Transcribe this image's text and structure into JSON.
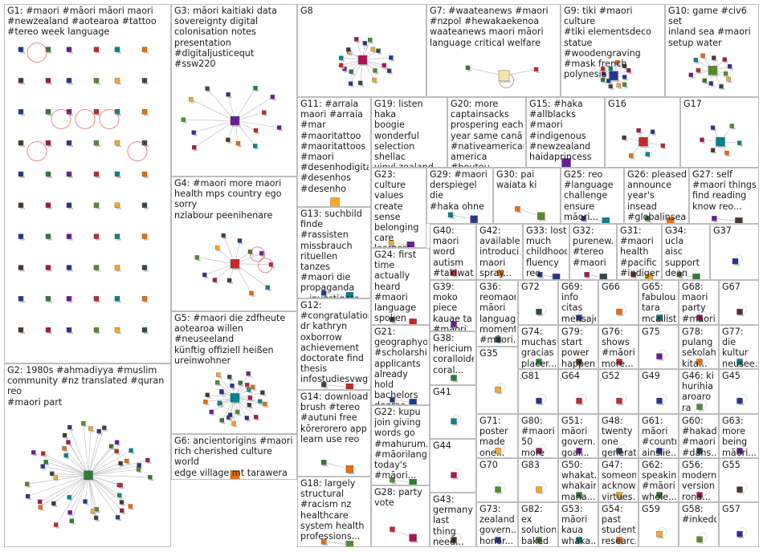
{
  "colors": {
    "border": "#bdbdbd",
    "edge": "#b9b9b9",
    "loop": "#e05a63",
    "text": "#1b1b1b"
  },
  "groups": [
    {
      "id": "G1",
      "text": "G1: #maori #māori māori maori\n#newzealand #aotearoa #tattoo\n#tereo week language",
      "shape": "grid",
      "nodes": 60,
      "loops": 6
    },
    {
      "id": "G2",
      "text": "G2: 1980s #ahmadiyya #muslim\ncommunity #nz translated #quran reo\n#maori part",
      "shape": "star",
      "nodes": 45,
      "loops": 0
    },
    {
      "id": "G3",
      "text": "G3: māori kaitiaki data\nsovereignty digital\ncolonisation notes\npresentation\n#digitaljusticequt #ssw220",
      "shape": "fan",
      "nodes": 14,
      "loops": 0
    },
    {
      "id": "G4",
      "text": "G4: #maori more maori\nhealth mps country ego sorry\nnzlabour peenihenare",
      "shape": "web",
      "nodes": 12,
      "loops": 2
    },
    {
      "id": "G5",
      "text": "G5: #maori die zdfheute\naotearoa willen #neuseeland\nkünftig offiziell heißen\nureinwohner",
      "shape": "star",
      "nodes": 28,
      "loops": 0
    },
    {
      "id": "G6",
      "text": "G6: ancientorigins #maori\nrich cherished culture world\nedge village mt tarawera",
      "shape": "star",
      "nodes": 24,
      "loops": 0
    },
    {
      "id": "G7",
      "text": "G7: #waateanews #maori\n#nzpol #hewakaekenoa\nwaateanews maori māori\nlanguage critical welfare",
      "shape": "hub",
      "nodes": 3,
      "loops": 1
    },
    {
      "id": "G8",
      "text": "G8",
      "shape": "star",
      "nodes": 18,
      "loops": 0
    },
    {
      "id": "G9",
      "text": "G9: tiki #maori culture\n#tiki elementsdeco\nstatue #woodengraving\n#mask french polynesia",
      "shape": "star",
      "nodes": 12,
      "loops": 0
    },
    {
      "id": "G10",
      "text": "G10: game #civ6 set\ninland sea #maori\nsetup water",
      "shape": "star",
      "nodes": 12,
      "loops": 0
    },
    {
      "id": "G11",
      "text": "G11: #arraia\nmaori #arraia\n#mar\n#maoritattoo\n#maoritattoos\n#maori\n#desenhodigital\n#desenhos\n#desenho",
      "shape": "star",
      "nodes": 8,
      "loops": 0
    },
    {
      "id": "G12",
      "text": "G12:\n#congratulations\ndr kathryn\noxborrow\nachievement\ndoctorate find\nthesis\ninfostudiesvwgtn...",
      "shape": "pair",
      "nodes": 2,
      "loops": 0
    },
    {
      "id": "G13",
      "text": "G13: suchbild\nfinde #rassisten\nmissbrauch\nrituellen tanzes\n#maori die\npropaganda\n__investigate__",
      "shape": "pair",
      "nodes": 2,
      "loops": 0
    },
    {
      "id": "G14",
      "text": "G14: download\nbrush #tereo\n#autuni free\nkōrerorero app\nlearn use reo",
      "shape": "pair",
      "nodes": 2,
      "loops": 0
    },
    {
      "id": "G15",
      "text": "G15: #haka\n#allblacks #maori\n#indigenous\n#newzealand\nhaidaprincess",
      "shape": "star",
      "nodes": 6,
      "loops": 0
    },
    {
      "id": "G16",
      "text": "G16",
      "shape": "star",
      "nodes": 6,
      "loops": 0
    },
    {
      "id": "G17",
      "text": "G17",
      "shape": "star",
      "nodes": 6,
      "loops": 0
    },
    {
      "id": "G18",
      "text": "G18: largely\nstructural\n#racism nz\nhealthcare\nsystem health\nprofessions...",
      "shape": "pair",
      "nodes": 2,
      "loops": 0
    },
    {
      "id": "G19",
      "text": "G19: listen haka\nboogie wonderful\nselection shellac\nvinyl zealand\nmostly 1950s",
      "shape": "none",
      "nodes": 0,
      "loops": 0
    },
    {
      "id": "G20",
      "text": "G20: more\ncaptainsacks\nprospering each\nyear same canā\n#nativeamericanā\namerica #boutou",
      "shape": "none",
      "nodes": 0,
      "loops": 0
    },
    {
      "id": "G21",
      "text": "G21:\ngeographyo...\n#scholarship\napplicants\nalready hold\nbachelors\ndegree...",
      "shape": "pair",
      "nodes": 2,
      "loops": 0
    },
    {
      "id": "G22",
      "text": "G22: kupu\njoin giving\nwords go\n#mahurum...\n#māorilang...\ntoday's\n#māori...",
      "shape": "pair",
      "nodes": 2,
      "loops": 0
    },
    {
      "id": "G23",
      "text": "G23: culture\nvalues\ncreate sense\nbelonging\ncare learners\nneed leave\nschool",
      "shape": "pair",
      "nodes": 2,
      "loops": 0
    },
    {
      "id": "G24",
      "text": "G24: first\ntime actually\nheard\n#maori\nlanguage\nspoken\nauthorkristi...",
      "shape": "pair",
      "nodes": 2,
      "loops": 0
    },
    {
      "id": "G25",
      "text": "G25: reo\n#language\nchallenge\nensure māori...",
      "shape": "pair",
      "nodes": 2,
      "loops": 0
    },
    {
      "id": "G26",
      "text": "G26: pleased\nannounce\nyear's insead\n#globalinsead...",
      "shape": "pair",
      "nodes": 2,
      "loops": 0
    },
    {
      "id": "G27",
      "text": "G27: self\n#maori things\nfind reading\nknow reo...",
      "shape": "pair",
      "nodes": 2,
      "loops": 0
    },
    {
      "id": "G28",
      "text": "G28: party\nvote",
      "shape": "pair",
      "nodes": 2,
      "loops": 0
    },
    {
      "id": "G29",
      "text": "G29: #maori\nderspiegel die\n#haka ohne",
      "shape": "pair",
      "nodes": 2,
      "loops": 0
    },
    {
      "id": "G30",
      "text": "G30: pai\nwaiata ki",
      "shape": "pair",
      "nodes": 2,
      "loops": 0
    },
    {
      "id": "G31",
      "text": "G31:\n#maori\nhealth\n#pacific\n#indigen...",
      "shape": "pair",
      "nodes": 2,
      "loops": 0
    },
    {
      "id": "G32",
      "text": "G32:\npurenew...\n#tereo\n#maori",
      "shape": "pair",
      "nodes": 2,
      "loops": 0
    },
    {
      "id": "G33",
      "text": "G33: lost\nmuch\nchildhood\nfluency\nreo māori...",
      "shape": "pair",
      "nodes": 2,
      "loops": 0
    },
    {
      "id": "G34",
      "text": "G34: ucla\naisc\nsupport\ndean\nbrendan...",
      "shape": "pair",
      "nodes": 2,
      "loops": 0
    },
    {
      "id": "G35",
      "text": "G35",
      "shape": "single",
      "nodes": 1,
      "loops": 0
    },
    {
      "id": "G36",
      "text": "G36:\nreomaori\nmāori\nlanguage\nmoment\n#māori...",
      "shape": "single",
      "nodes": 1,
      "loops": 0
    },
    {
      "id": "G37",
      "text": "G37",
      "shape": "single",
      "nodes": 1,
      "loops": 0
    },
    {
      "id": "G38",
      "text": "G38:\nhericium\ncoralloides\ncoral...",
      "shape": "single",
      "nodes": 1,
      "loops": 0
    },
    {
      "id": "G39",
      "text": "G39: moko\npiece\nkauae ta\n#maori...",
      "shape": "single",
      "nodes": 1,
      "loops": 0
    },
    {
      "id": "G40",
      "text": "G40: maori\nword\nautism\n#takiwata...",
      "shape": "single",
      "nodes": 1,
      "loops": 0
    },
    {
      "id": "G41",
      "text": "G41",
      "shape": "single",
      "nodes": 1,
      "loops": 0
    },
    {
      "id": "G42",
      "text": "G42:\navailable\nintroduci...\nmaori\nspray...",
      "shape": "single",
      "nodes": 1,
      "loops": 0
    },
    {
      "id": "G43",
      "text": "G43:\ngermany\nlast thing\nneed...",
      "shape": "single",
      "nodes": 1,
      "loops": 0
    },
    {
      "id": "G44",
      "text": "G44",
      "shape": "single",
      "nodes": 1,
      "loops": 0
    },
    {
      "id": "G45",
      "text": "G45",
      "shape": "single",
      "nodes": 1,
      "loops": 0
    },
    {
      "id": "G46",
      "text": "G46: ki\nhurihia\naroaro ra\ntukuna...",
      "shape": "single",
      "nodes": 1,
      "loops": 0
    },
    {
      "id": "G47",
      "text": "G47:\nsomeone\nacknow...\nvirtues...",
      "shape": "single",
      "nodes": 1,
      "loops": 0
    },
    {
      "id": "G48",
      "text": "G48:\ntwenty\none\ngenerat...",
      "shape": "single",
      "nodes": 1,
      "loops": 0
    },
    {
      "id": "G49",
      "text": "G49",
      "shape": "single",
      "nodes": 1,
      "loops": 0
    },
    {
      "id": "G50",
      "text": "G50:\nwhakat...\nwhakairo\nmana...",
      "shape": "single",
      "nodes": 1,
      "loops": 0
    },
    {
      "id": "G51",
      "text": "G51:\nmāori\ngovern...\ngoal...",
      "shape": "single",
      "nodes": 1,
      "loops": 0
    },
    {
      "id": "G52",
      "text": "G52",
      "shape": "single",
      "nodes": 1,
      "loops": 0
    },
    {
      "id": "G53",
      "text": "G53:\nmāori\nkaua\nwhaka...",
      "shape": "single",
      "nodes": 1,
      "loops": 0
    },
    {
      "id": "G54",
      "text": "G54:\npast\nstudent\nresearc...",
      "shape": "single",
      "nodes": 1,
      "loops": 0
    },
    {
      "id": "G55",
      "text": "G55",
      "shape": "single",
      "nodes": 1,
      "loops": 0
    },
    {
      "id": "G56",
      "text": "G56:\nmodern\nversion\nrona...",
      "shape": "single",
      "nodes": 1,
      "loops": 0
    },
    {
      "id": "G57",
      "text": "G57",
      "shape": "single",
      "nodes": 1,
      "loops": 0
    },
    {
      "id": "G58",
      "text": "G58:\n#inkedd...",
      "shape": "single",
      "nodes": 1,
      "loops": 0
    },
    {
      "id": "G59",
      "text": "G59",
      "shape": "single",
      "nodes": 1,
      "loops": 0
    },
    {
      "id": "G60",
      "text": "G60:\n#hakad...\n#maori\n#dans...",
      "shape": "single",
      "nodes": 1,
      "loops": 0
    },
    {
      "id": "G61",
      "text": "G61:\nmāori\n#country\nainslie...",
      "shape": "single",
      "nodes": 1,
      "loops": 0
    },
    {
      "id": "G62",
      "text": "G62:\nspeaking\n#māori\nwhole...",
      "shape": "single",
      "nodes": 1,
      "loops": 0
    },
    {
      "id": "G63",
      "text": "G63:\nmore\nbeing\nmāori...",
      "shape": "single",
      "nodes": 1,
      "loops": 0
    },
    {
      "id": "G64",
      "text": "G64",
      "shape": "single",
      "nodes": 1,
      "loops": 0
    },
    {
      "id": "G65",
      "text": "G65:\nfabulous\ntara\nmcallist...",
      "shape": "single",
      "nodes": 1,
      "loops": 0
    },
    {
      "id": "G66",
      "text": "G66",
      "shape": "single",
      "nodes": 1,
      "loops": 0
    },
    {
      "id": "G67",
      "text": "G67",
      "shape": "single",
      "nodes": 1,
      "loops": 0
    },
    {
      "id": "G68",
      "text": "G68:\nmaori\nparty\n#maori...",
      "shape": "single",
      "nodes": 1,
      "loops": 0
    },
    {
      "id": "G69",
      "text": "G69: info\ncitas\nmensaje\nprivado...",
      "shape": "single",
      "nodes": 1,
      "loops": 0
    },
    {
      "id": "G70",
      "text": "G70",
      "shape": "single",
      "nodes": 1,
      "loops": 0
    },
    {
      "id": "G71",
      "text": "G71:\nposter\nmade\none...",
      "shape": "single",
      "nodes": 1,
      "loops": 0
    },
    {
      "id": "G72",
      "text": "G72",
      "shape": "single",
      "nodes": 1,
      "loops": 0
    },
    {
      "id": "G73",
      "text": "G73:\nzealand\ngovern...\nhonor...",
      "shape": "single",
      "nodes": 1,
      "loops": 0
    },
    {
      "id": "G74",
      "text": "G74:\nmuchas\ngracias\nplacer...",
      "shape": "single",
      "nodes": 1,
      "loops": 0
    },
    {
      "id": "G75",
      "text": "G75",
      "shape": "single",
      "nodes": 1,
      "loops": 0
    },
    {
      "id": "G76",
      "text": "G76:\nshows\n#māori\nmore...",
      "shape": "single",
      "nodes": 1,
      "loops": 0
    },
    {
      "id": "G77",
      "text": "G77: die\nkultur\nneusee...\n#maori...",
      "shape": "single",
      "nodes": 1,
      "loops": 0
    },
    {
      "id": "G78",
      "text": "G78:\npulang\nsekolah\nkita...",
      "shape": "single",
      "nodes": 1,
      "loops": 0
    },
    {
      "id": "G79",
      "text": "G79:\nstart\npower\nhappen...",
      "shape": "single",
      "nodes": 1,
      "loops": 0
    },
    {
      "id": "G80",
      "text": "G80:\n#maori\n50 more\ndie...",
      "shape": "single",
      "nodes": 1,
      "loops": 0
    },
    {
      "id": "G81",
      "text": "G81",
      "shape": "single",
      "nodes": 1,
      "loops": 0
    },
    {
      "id": "G82",
      "text": "G82: ex\nsolution\nbaked\nsystem...",
      "shape": "single",
      "nodes": 1,
      "loops": 0
    },
    {
      "id": "G83",
      "text": "G83",
      "shape": "single",
      "nodes": 1,
      "loops": 0
    }
  ]
}
